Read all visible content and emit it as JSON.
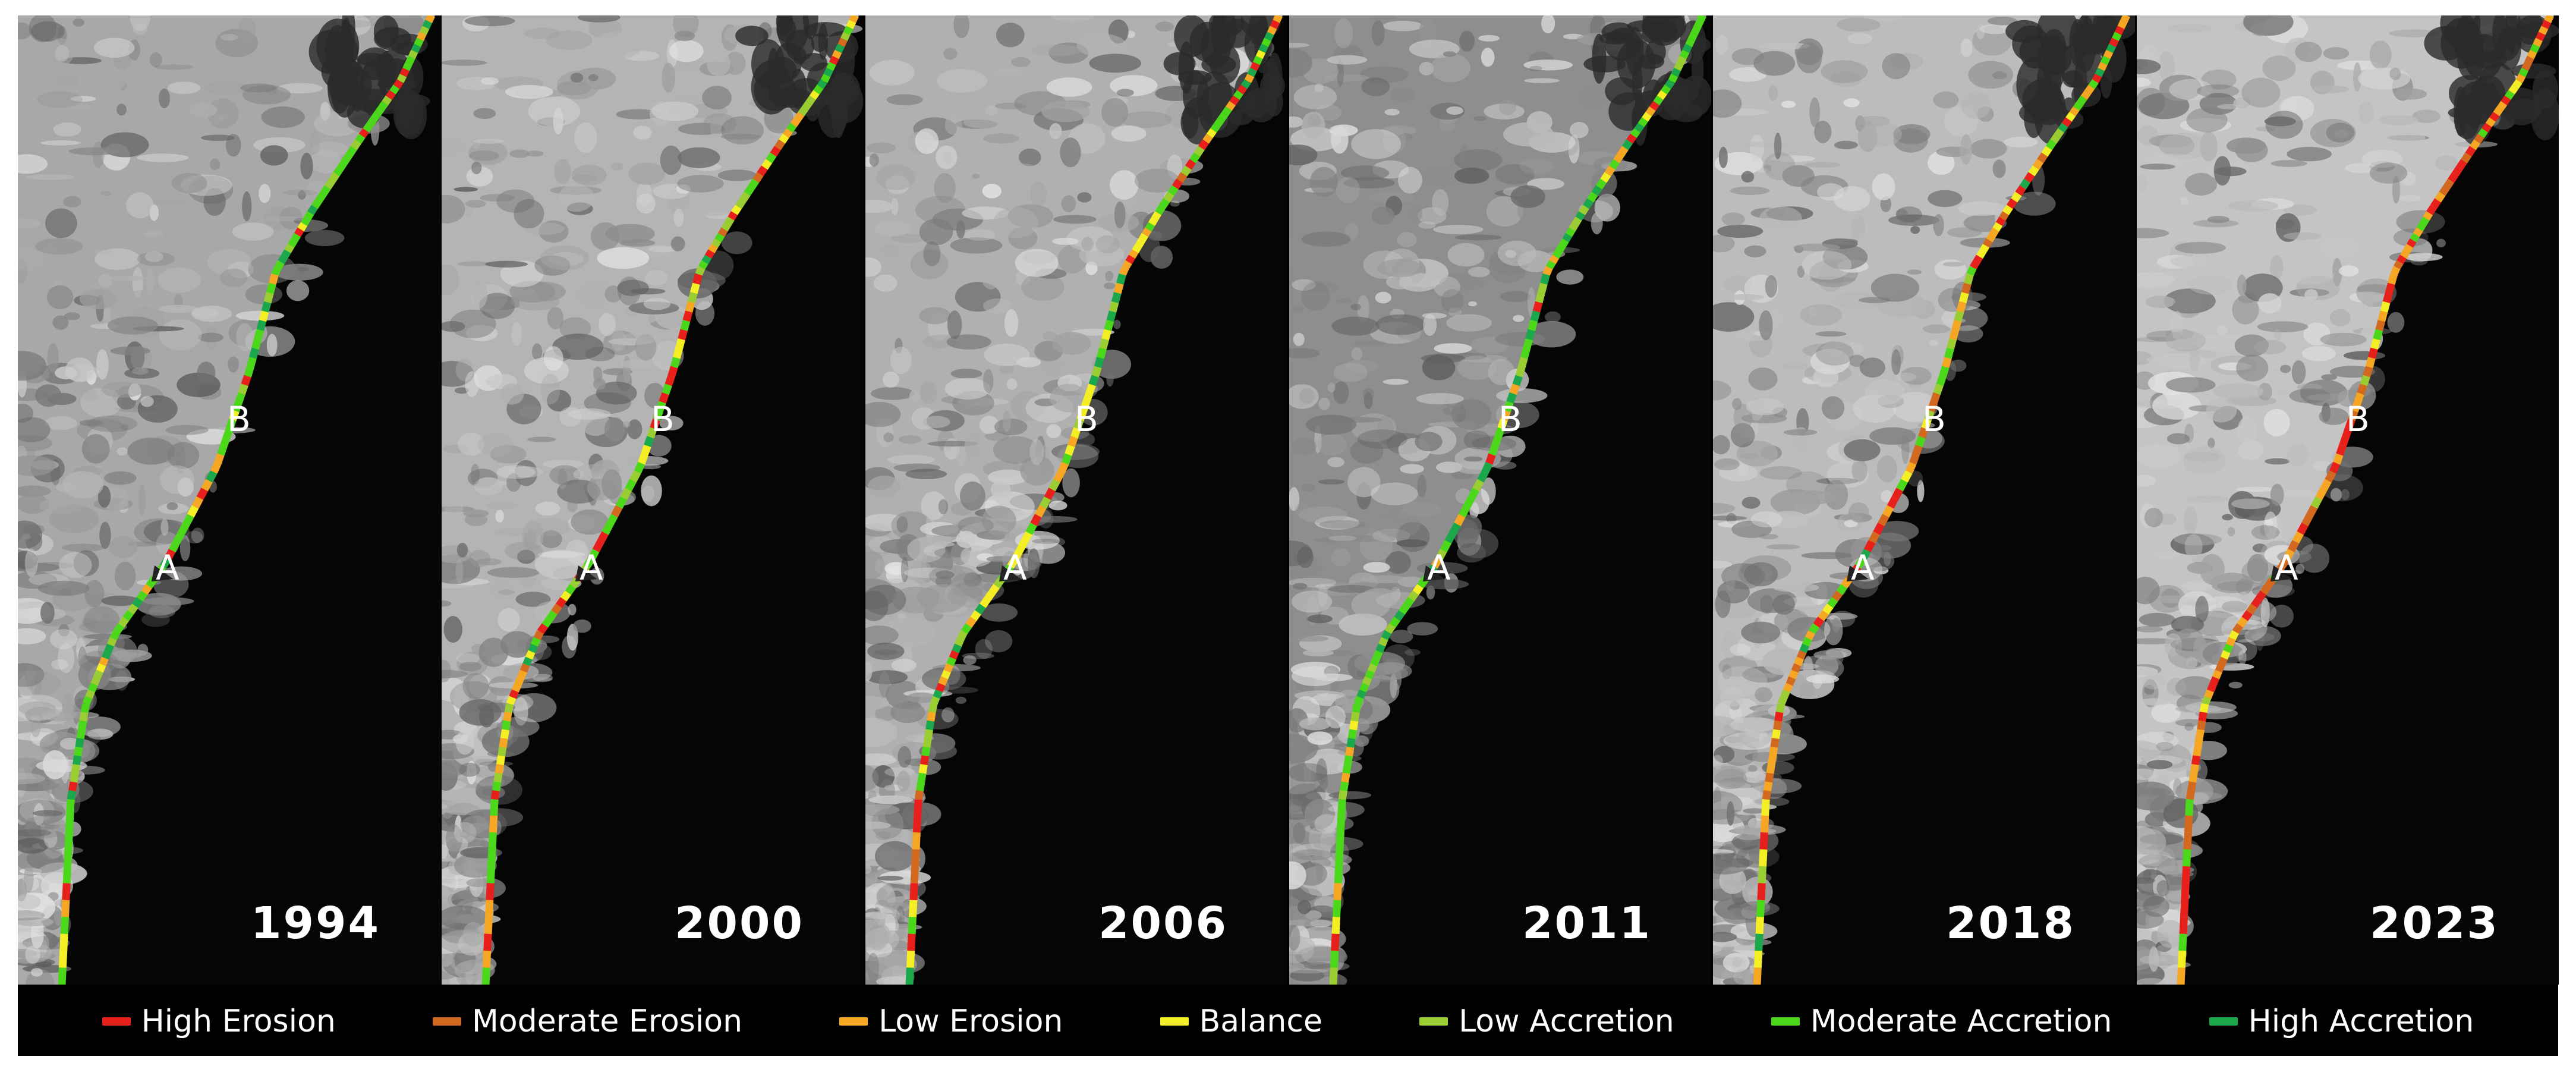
{
  "panels": [
    {
      "year": "1994",
      "label_a": "A",
      "label_b": "B"
    },
    {
      "year": "2000",
      "label_a": "A",
      "label_b": "B"
    },
    {
      "year": "2006",
      "label_a": "A",
      "label_b": "B"
    },
    {
      "year": "2011",
      "label_a": "A",
      "label_b": "B"
    },
    {
      "year": "2018",
      "label_a": "A",
      "label_b": "B"
    },
    {
      "year": "2023",
      "label_a": "A",
      "label_b": "B"
    }
  ],
  "legend": [
    {
      "label": "High Erosion",
      "color": "#e8201c"
    },
    {
      "label": "Moderate Erosion",
      "color": "#d2691e"
    },
    {
      "label": "Low Erosion",
      "color": "#f5a623"
    },
    {
      "label": "Balance",
      "color": "#f4ee24"
    },
    {
      "label": "Low Accretion",
      "color": "#9acd32"
    },
    {
      "label": "Moderate Accretion",
      "color": "#4cd81a"
    },
    {
      "label": "High Accretion",
      "color": "#1aa84a"
    }
  ]
}
